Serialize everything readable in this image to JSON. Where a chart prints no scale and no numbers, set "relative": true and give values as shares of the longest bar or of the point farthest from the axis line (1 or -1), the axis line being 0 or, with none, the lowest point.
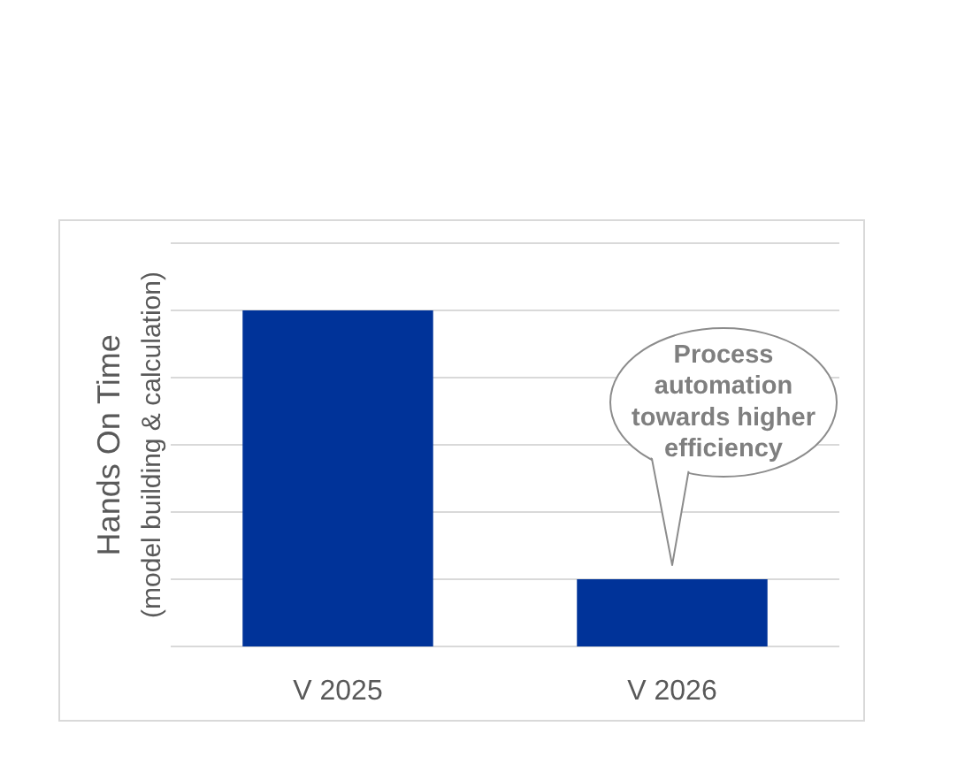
{
  "chart_data": {
    "type": "bar",
    "ylabel": "Hands On Time\n(model building & calculation)",
    "categories": [
      "V 2025",
      "V 2026"
    ],
    "values": [
      1,
      0.2
    ],
    "color": "#003399",
    "relative": true,
    "grid": "y",
    "annotations": [
      {
        "text": "Process automation towards higher efficiency",
        "x": "V 2026",
        "y": 0.2
      }
    ]
  }
}
